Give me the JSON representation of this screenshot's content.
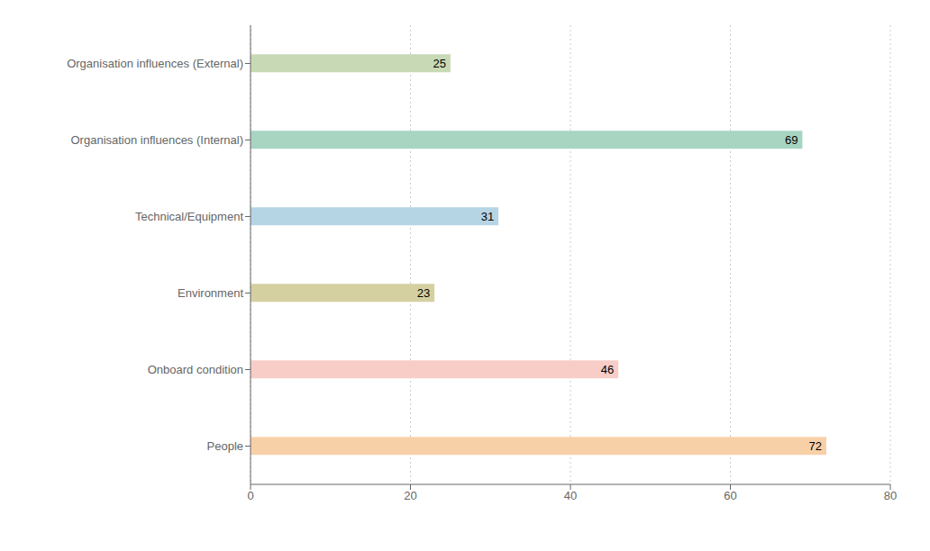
{
  "chart_data": {
    "type": "bar",
    "orientation": "horizontal",
    "categories": [
      "Organisation influences (External)",
      "Organisation influences (Internal)",
      "Technical/Equipment",
      "Environment",
      "Onboard condition",
      "People"
    ],
    "values": [
      25,
      69,
      31,
      23,
      46,
      72
    ],
    "colors": [
      "#c8dab5",
      "#a8d5c2",
      "#b5d5e5",
      "#d5d0a0",
      "#f8cdc8",
      "#f8d0a8"
    ],
    "xlim": [
      0,
      80
    ],
    "xticks": [
      0,
      20,
      40,
      60,
      80
    ],
    "grid": true,
    "data_labels": true
  }
}
